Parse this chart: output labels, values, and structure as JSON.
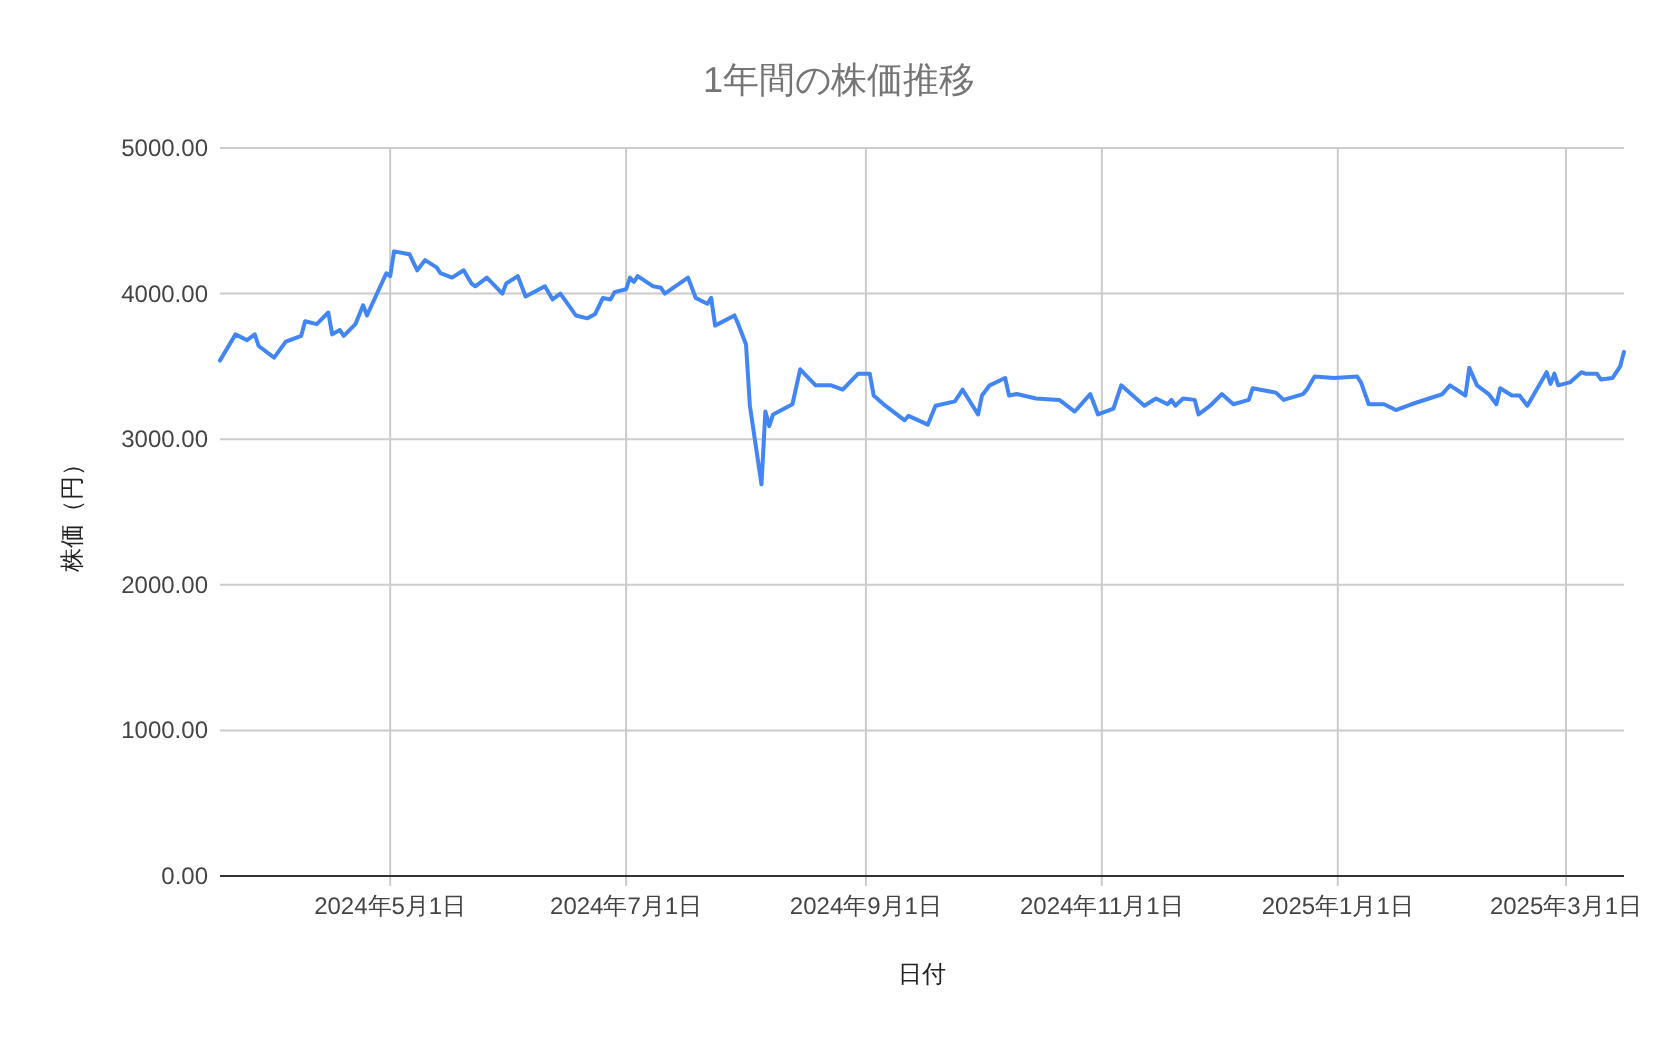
{
  "chart_data": {
    "type": "line",
    "title": "1年間の株価推移",
    "xlabel": "日付",
    "ylabel": "株価（円）",
    "x": [
      "2024-03-18",
      "2024-03-22",
      "2024-03-25",
      "2024-03-27",
      "2024-03-28",
      "2024-04-01",
      "2024-04-04",
      "2024-04-08",
      "2024-04-09",
      "2024-04-12",
      "2024-04-15",
      "2024-04-16",
      "2024-04-18",
      "2024-04-19",
      "2024-04-22",
      "2024-04-24",
      "2024-04-25",
      "2024-04-30",
      "2024-05-01",
      "2024-05-02",
      "2024-05-06",
      "2024-05-08",
      "2024-05-10",
      "2024-05-13",
      "2024-05-14",
      "2024-05-17",
      "2024-05-20",
      "2024-05-22",
      "2024-05-23",
      "2024-05-26",
      "2024-05-30",
      "2024-05-31",
      "2024-06-03",
      "2024-06-05",
      "2024-06-10",
      "2024-06-12",
      "2024-06-14",
      "2024-06-18",
      "2024-06-21",
      "2024-06-23",
      "2024-06-25",
      "2024-06-27",
      "2024-06-28",
      "2024-07-01",
      "2024-07-02",
      "2024-07-03",
      "2024-07-04",
      "2024-07-08",
      "2024-07-10",
      "2024-07-11",
      "2024-07-17",
      "2024-07-19",
      "2024-07-22",
      "2024-07-23",
      "2024-07-24",
      "2024-07-29",
      "2024-07-30",
      "2024-08-01",
      "2024-08-02",
      "2024-08-05",
      "2024-08-06",
      "2024-08-07",
      "2024-08-08",
      "2024-08-13",
      "2024-08-15",
      "2024-08-19",
      "2024-08-23",
      "2024-08-26",
      "2024-08-30",
      "2024-09-02",
      "2024-09-03",
      "2024-09-06",
      "2024-09-09",
      "2024-09-11",
      "2024-09-12",
      "2024-09-17",
      "2024-09-19",
      "2024-09-24",
      "2024-09-26",
      "2024-09-30",
      "2024-10-01",
      "2024-10-03",
      "2024-10-07",
      "2024-10-08",
      "2024-10-10",
      "2024-10-15",
      "2024-10-21",
      "2024-10-25",
      "2024-10-29",
      "2024-10-31",
      "2024-11-04",
      "2024-11-06",
      "2024-11-12",
      "2024-11-15",
      "2024-11-18",
      "2024-11-19",
      "2024-11-20",
      "2024-11-22",
      "2024-11-25",
      "2024-11-26",
      "2024-11-28",
      "2024-11-29",
      "2024-12-02",
      "2024-12-05",
      "2024-12-09",
      "2024-12-10",
      "2024-12-12",
      "2024-12-16",
      "2024-12-18",
      "2024-12-23",
      "2024-12-24",
      "2024-12-26",
      "2024-12-31",
      "2025-01-06",
      "2025-01-07",
      "2025-01-09",
      "2025-01-13",
      "2025-01-16",
      "2025-01-20",
      "2025-01-27",
      "2025-01-28",
      "2025-01-30",
      "2025-02-03",
      "2025-02-04",
      "2025-02-06",
      "2025-02-09",
      "2025-02-11",
      "2025-02-12",
      "2025-02-15",
      "2025-02-17",
      "2025-02-19",
      "2025-02-24",
      "2025-02-25",
      "2025-02-26",
      "2025-02-27",
      "2025-03-02",
      "2025-03-05",
      "2025-03-06",
      "2025-03-09",
      "2025-03-10",
      "2025-03-13",
      "2025-03-15",
      "2025-03-16"
    ],
    "series": [
      {
        "color": "#4285f4",
        "values": [
          3540,
          3720,
          3680,
          3720,
          3640,
          3560,
          3670,
          3710,
          3810,
          3790,
          3870,
          3720,
          3750,
          3710,
          3790,
          3920,
          3850,
          4140,
          4120,
          4290,
          4270,
          4160,
          4230,
          4180,
          4140,
          4110,
          4160,
          4070,
          4050,
          4110,
          4000,
          4070,
          4120,
          3980,
          4050,
          3960,
          4000,
          3850,
          3830,
          3860,
          3970,
          3960,
          4010,
          4030,
          4110,
          4080,
          4120,
          4050,
          4040,
          4000,
          4110,
          3970,
          3930,
          3970,
          3780,
          3850,
          3790,
          3650,
          3230,
          2690,
          3190,
          3090,
          3170,
          3240,
          3480,
          3370,
          3370,
          3340,
          3450,
          3450,
          3300,
          3230,
          3170,
          3130,
          3160,
          3100,
          3230,
          3260,
          3340,
          3170,
          3300,
          3370,
          3420,
          3300,
          3310,
          3280,
          3270,
          3190,
          3310,
          3170,
          3210,
          3370,
          3230,
          3280,
          3240,
          3270,
          3230,
          3280,
          3270,
          3170,
          3210,
          3230,
          3310,
          3240,
          3270,
          3350,
          3340,
          3320,
          3270,
          3310,
          3340,
          3430,
          3420,
          3430,
          3390,
          3240,
          3240,
          3200,
          3240,
          3300,
          3310,
          3370,
          3300,
          3490,
          3370,
          3310,
          3240,
          3350,
          3300,
          3300,
          3230,
          3460,
          3380,
          3450,
          3370,
          3390,
          3460,
          3450,
          3450,
          3410,
          3420,
          3500,
          3600
        ]
      }
    ],
    "xlim": [
      "2024-03-18",
      "2025-03-16"
    ],
    "xticks": [
      {
        "value": "2024-05-01",
        "label": "2024年5月1日"
      },
      {
        "value": "2024-07-01",
        "label": "2024年7月1日"
      },
      {
        "value": "2024-09-01",
        "label": "2024年9月1日"
      },
      {
        "value": "2024-11-01",
        "label": "2024年11月1日"
      },
      {
        "value": "2025-01-01",
        "label": "2025年1月1日"
      },
      {
        "value": "2025-03-01",
        "label": "2025年3月1日"
      }
    ],
    "ylim": [
      0,
      5000
    ],
    "yticks": [
      {
        "value": 0,
        "label": "0.00"
      },
      {
        "value": 1000,
        "label": "1000.00"
      },
      {
        "value": 2000,
        "label": "2000.00"
      },
      {
        "value": 3000,
        "label": "3000.00"
      },
      {
        "value": 4000,
        "label": "4000.00"
      },
      {
        "value": 5000,
        "label": "5000.00"
      }
    ],
    "grid": true,
    "line_style": "solid",
    "marker": "none"
  }
}
